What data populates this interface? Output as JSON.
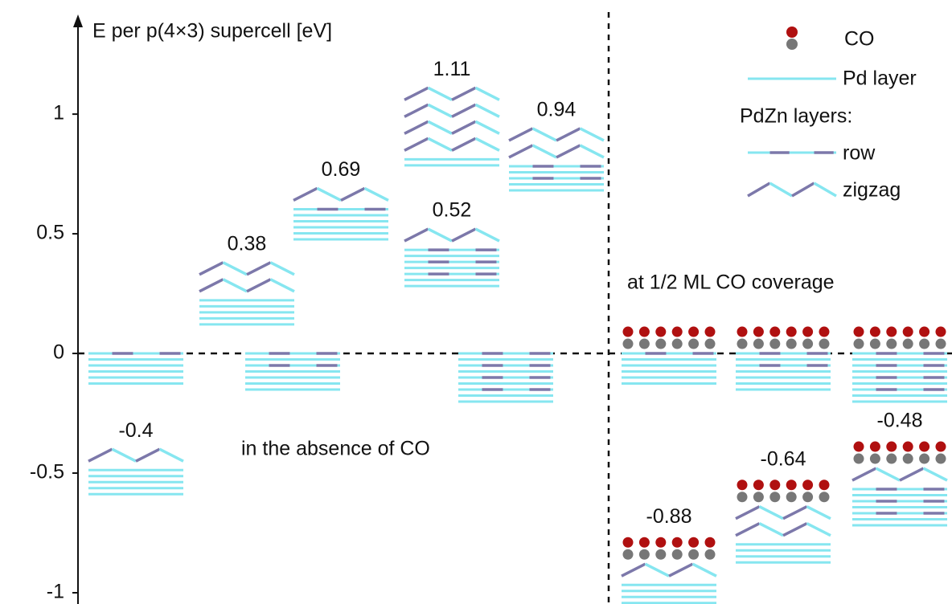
{
  "chart_data": {
    "type": "energy-levels",
    "ylabel": "E per p(4×3) supercell [eV]",
    "ylim": [
      -1.047,
      1.393
    ],
    "yticks": [
      1,
      0.5,
      0,
      -0.5,
      -1
    ],
    "zero_line": true,
    "colors": {
      "Pd layer": "#86e6f0",
      "PdZn": "#7c78aa",
      "CO_top": "#b01010",
      "CO_bottom": "#777777"
    },
    "legend": {
      "co": "CO",
      "pd": "Pd layer",
      "pdzn": "PdZn layers:",
      "row": "row",
      "zigzag": "zigzag"
    },
    "series": [
      {
        "name": "in the absence of CO",
        "references": [
          {
            "layers": [
              "row",
              "Pd layer",
              "Pd layer",
              "Pd layer",
              "Pd layer",
              "Pd layer"
            ]
          },
          {
            "layers": [
              "row",
              "Pd layer",
              "row",
              "Pd layer",
              "Pd layer",
              "Pd layer",
              "Pd layer"
            ]
          },
          {
            "layers": [
              "row",
              "Pd layer",
              "row",
              "Pd layer",
              "row",
              "Pd layer",
              "row",
              "Pd layer",
              "Pd layer"
            ]
          }
        ],
        "structures": [
          {
            "value": -0.4,
            "layers": [
              "zigzag",
              "Pd layer",
              "Pd layer",
              "Pd layer",
              "Pd layer",
              "Pd layer"
            ]
          },
          {
            "value": 0.38,
            "layers": [
              "zigzag",
              "zigzag",
              "Pd layer",
              "Pd layer",
              "Pd layer",
              "Pd layer",
              "Pd layer"
            ]
          },
          {
            "value": 0.69,
            "layers": [
              "zigzag",
              "row",
              "Pd layer",
              "Pd layer",
              "Pd layer",
              "Pd layer",
              "Pd layer"
            ]
          },
          {
            "value": 1.11,
            "layers": [
              "zigzag",
              "zigzag",
              "zigzag",
              "zigzag",
              "Pd layer",
              "Pd layer"
            ]
          },
          {
            "value": 0.52,
            "layers": [
              "zigzag",
              "row",
              "Pd layer",
              "row",
              "Pd layer",
              "row",
              "Pd layer",
              "Pd layer"
            ]
          },
          {
            "value": 0.94,
            "layers": [
              "zigzag",
              "zigzag",
              "row",
              "Pd layer",
              "row",
              "Pd layer",
              "Pd layer"
            ]
          }
        ]
      },
      {
        "name": "at 1/2 ML CO coverage",
        "adsorbate": "CO",
        "references": [
          {
            "layers": [
              "row",
              "Pd layer",
              "Pd layer",
              "Pd layer",
              "Pd layer",
              "Pd layer"
            ]
          },
          {
            "layers": [
              "row",
              "Pd layer",
              "row",
              "Pd layer",
              "Pd layer",
              "Pd layer",
              "Pd layer"
            ]
          },
          {
            "layers": [
              "row",
              "Pd layer",
              "row",
              "Pd layer",
              "row",
              "Pd layer",
              "row",
              "Pd layer",
              "Pd layer"
            ]
          }
        ],
        "structures": [
          {
            "value": -0.88,
            "layers": [
              "zigzag",
              "Pd layer",
              "Pd layer",
              "Pd layer",
              "Pd layer",
              "Pd layer"
            ]
          },
          {
            "value": -0.64,
            "layers": [
              "zigzag",
              "zigzag",
              "Pd layer",
              "Pd layer",
              "Pd layer",
              "Pd layer"
            ]
          },
          {
            "value": -0.48,
            "layers": [
              "zigzag",
              "row",
              "Pd layer",
              "row",
              "Pd layer",
              "row",
              "Pd layer",
              "Pd layer"
            ]
          }
        ]
      }
    ]
  }
}
